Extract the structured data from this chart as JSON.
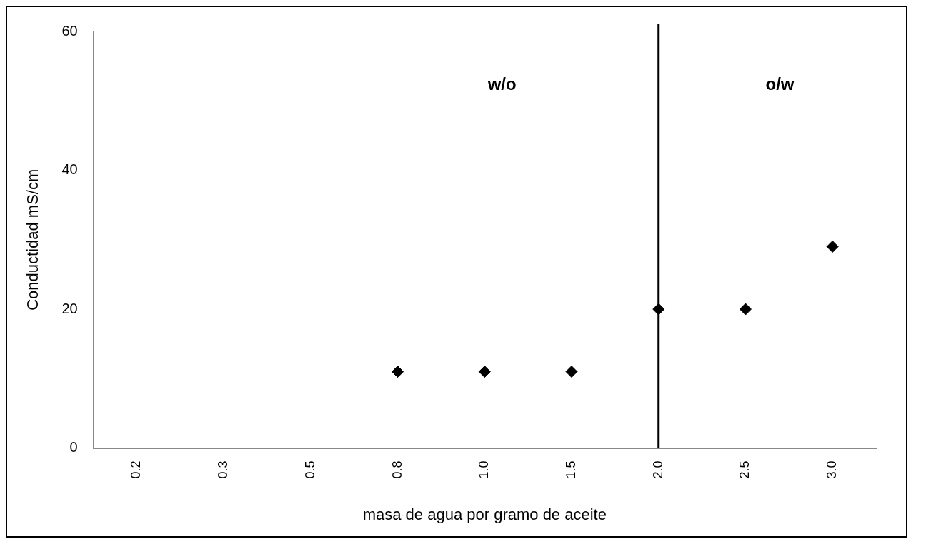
{
  "chart_data": {
    "type": "scatter",
    "xlabel": "masa de agua por gramo de aceite",
    "ylabel": "Conductidad mS/cm",
    "categories": [
      "0.2",
      "0.3",
      "0.5",
      "0.8",
      "1.0",
      "1.5",
      "2.0",
      "2.5",
      "3.0"
    ],
    "series": [
      {
        "color": "#000000",
        "values": [
          null,
          null,
          null,
          11,
          11,
          11,
          20,
          20,
          29
        ]
      }
    ],
    "ylim": [
      0,
      60
    ],
    "yticks": [
      0,
      20,
      40,
      60
    ],
    "grid": false,
    "legend": false,
    "marker": "diamond",
    "ref_lines": [
      {
        "axis": "x",
        "value": "2.0",
        "color": "#000000"
      }
    ],
    "annotations": [
      "w/o",
      "o/w"
    ]
  }
}
